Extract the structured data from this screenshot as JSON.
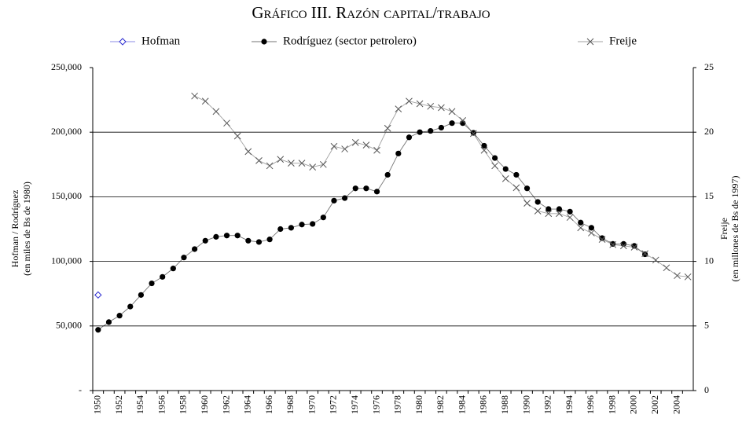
{
  "chart_data": {
    "type": "line",
    "title": "Gráfico III. Razón capital/trabajo",
    "ylabel": [
      "Hofman / Rodríguez",
      "(en miles de Bs de 1980)"
    ],
    "y2label": [
      "Freije",
      "(en millones de  Bs de 1997)"
    ],
    "categories": [
      "1950",
      null,
      "1952",
      null,
      "1954",
      null,
      "1956",
      null,
      "1958",
      null,
      "1960",
      null,
      "1962",
      null,
      "1964",
      null,
      "1966",
      null,
      "1968",
      null,
      "1970",
      null,
      "1972",
      null,
      "1974",
      null,
      "1976",
      null,
      "1978",
      null,
      "1980",
      null,
      "1982",
      null,
      "1984",
      null,
      "1986",
      null,
      "1988",
      null,
      "1990",
      null,
      "1992",
      null,
      "1994",
      null,
      "1996",
      null,
      "1998",
      null,
      "2000",
      null,
      "2002",
      null,
      "2004",
      null
    ],
    "series": [
      {
        "name": "Hofman",
        "color": "#2b2bd0",
        "marker": "diamond",
        "axis": "y",
        "values": [
          74000,
          null,
          null,
          null,
          null,
          null,
          null,
          null,
          null,
          null,
          null,
          null,
          null,
          null,
          null,
          null,
          null,
          null,
          null,
          null,
          null,
          null,
          null,
          null,
          null,
          null,
          null,
          null,
          null,
          null,
          null,
          null,
          null,
          null,
          null,
          null,
          null,
          null,
          null,
          null,
          null,
          null,
          null,
          null,
          null,
          null,
          null,
          null,
          null,
          null,
          null,
          null,
          null,
          null,
          null,
          null
        ]
      },
      {
        "name": "Rodríguez (sector petrolero)",
        "color": "#000000",
        "marker": "circle",
        "axis": "y",
        "values": [
          47000,
          53000,
          58000,
          65000,
          74000,
          83000,
          88000,
          94500,
          103000,
          109500,
          116000,
          119000,
          120000,
          120000,
          116000,
          115000,
          117000,
          125000,
          126000,
          128500,
          129000,
          134000,
          147000,
          149000,
          156500,
          156500,
          154000,
          167000,
          183500,
          196000,
          200000,
          201000,
          203500,
          207000,
          207000,
          199500,
          189500,
          180000,
          171500,
          167000,
          156500,
          146000,
          140500,
          140500,
          138500,
          130000,
          126000,
          118000,
          113500,
          113500,
          112000,
          105500,
          null,
          null,
          null,
          null
        ]
      },
      {
        "name": "Freije",
        "color": "#555555",
        "marker": "x",
        "axis": "y2",
        "values": [
          null,
          null,
          null,
          null,
          null,
          null,
          null,
          null,
          null,
          22.8,
          22.4,
          21.6,
          20.7,
          19.7,
          18.5,
          17.8,
          17.4,
          17.9,
          17.6,
          17.6,
          17.3,
          17.5,
          18.9,
          18.7,
          19.2,
          19.0,
          18.6,
          20.3,
          21.8,
          22.4,
          22.2,
          22.0,
          21.9,
          21.6,
          20.9,
          19.9,
          18.6,
          17.4,
          16.4,
          15.7,
          14.5,
          13.9,
          13.7,
          13.7,
          13.4,
          12.6,
          12.2,
          11.7,
          11.3,
          11.2,
          11.1,
          10.6,
          10.1,
          9.5,
          8.9,
          8.8
        ]
      }
    ],
    "ylim": [
      0,
      250000
    ],
    "yticks": [
      {
        "value": 0,
        "label": "-"
      },
      {
        "value": 50000,
        "label": "50,000"
      },
      {
        "value": 100000,
        "label": "100,000"
      },
      {
        "value": 150000,
        "label": "150,000"
      },
      {
        "value": 200000,
        "label": "200,000"
      },
      {
        "value": 250000,
        "label": "250,000"
      }
    ],
    "y2lim": [
      0,
      25
    ],
    "y2ticks": [
      0,
      5,
      10,
      15,
      20,
      25
    ],
    "grid": true,
    "legend": "top"
  }
}
